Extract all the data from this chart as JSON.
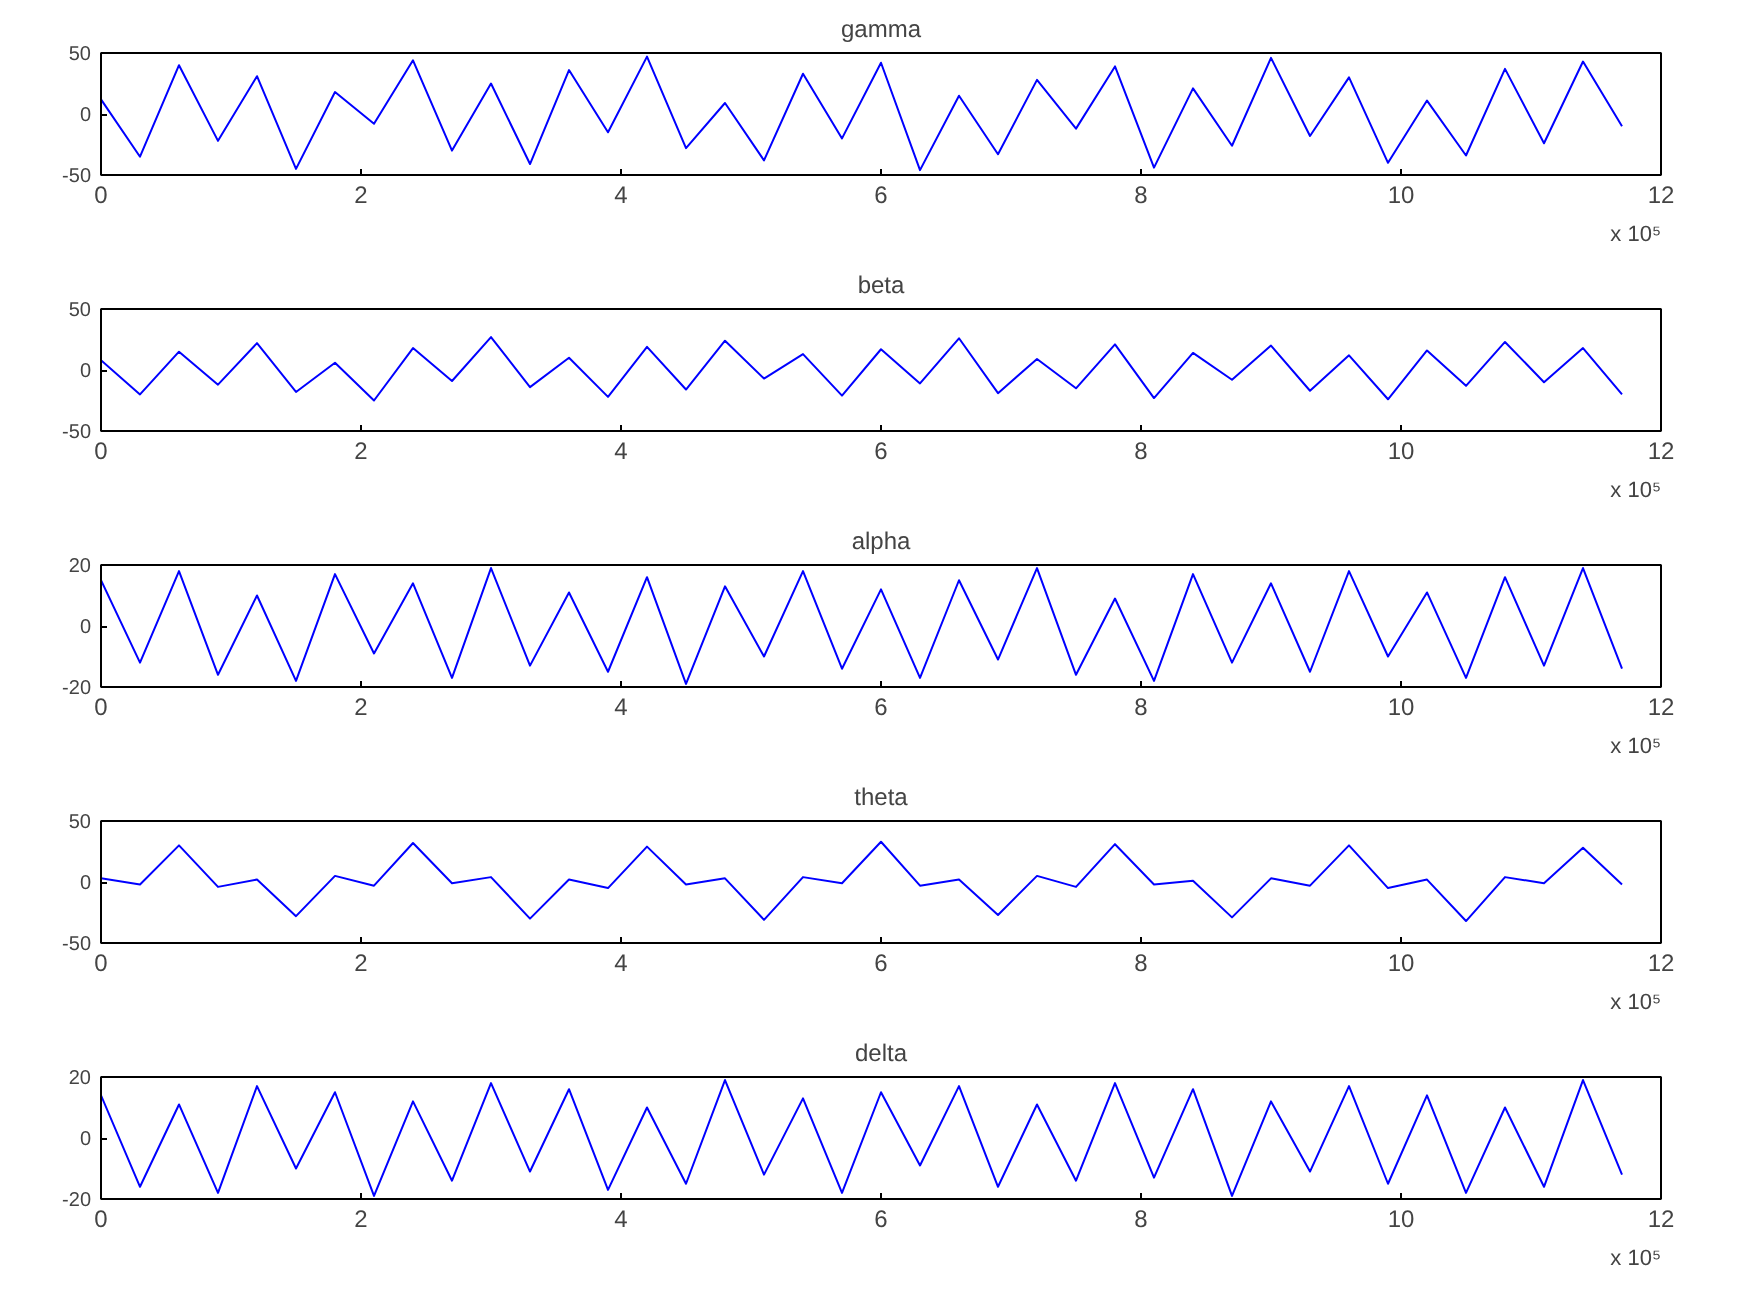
{
  "chart_data": [
    {
      "type": "line",
      "title": "gamma",
      "annotations": [
        "x 10⁵"
      ],
      "color": "#0000ff",
      "grid": false,
      "marker": "none",
      "line_style": "solid",
      "x": [
        0,
        0.3,
        0.6,
        0.9,
        1.2,
        1.5,
        1.8,
        2.1,
        2.4,
        2.7,
        3.0,
        3.3,
        3.6,
        3.9,
        4.2,
        4.5,
        4.8,
        5.1,
        5.4,
        5.7,
        6.0,
        6.3,
        6.6,
        6.9,
        7.2,
        7.5,
        7.8,
        8.1,
        8.4,
        8.7,
        9.0,
        9.3,
        9.6,
        9.9,
        10.2,
        10.5,
        10.8,
        11.1,
        11.4,
        11.7
      ],
      "values": [
        12,
        -35,
        40,
        -22,
        31,
        -45,
        18,
        -8,
        44,
        -30,
        25,
        -41,
        36,
        -15,
        47,
        -28,
        9,
        -38,
        33,
        -20,
        42,
        -46,
        15,
        -33,
        28,
        -12,
        39,
        -44,
        21,
        -26,
        46,
        -18,
        30,
        -40,
        11,
        -34,
        37,
        -24,
        43,
        -10
      ],
      "xlim": [
        0,
        12
      ],
      "xticks": [
        0,
        2,
        4,
        6,
        8,
        10,
        12
      ],
      "ylim": [
        -50,
        50
      ],
      "yticks": [
        -50,
        0,
        50
      ]
    },
    {
      "type": "line",
      "title": "beta",
      "annotations": [
        "x 10⁵"
      ],
      "color": "#0000ff",
      "grid": false,
      "marker": "none",
      "line_style": "solid",
      "x": [
        0,
        0.3,
        0.6,
        0.9,
        1.2,
        1.5,
        1.8,
        2.1,
        2.4,
        2.7,
        3.0,
        3.3,
        3.6,
        3.9,
        4.2,
        4.5,
        4.8,
        5.1,
        5.4,
        5.7,
        6.0,
        6.3,
        6.6,
        6.9,
        7.2,
        7.5,
        7.8,
        8.1,
        8.4,
        8.7,
        9.0,
        9.3,
        9.6,
        9.9,
        10.2,
        10.5,
        10.8,
        11.1,
        11.4,
        11.7
      ],
      "values": [
        8,
        -20,
        15,
        -12,
        22,
        -18,
        6,
        -25,
        18,
        -9,
        27,
        -14,
        10,
        -22,
        19,
        -16,
        24,
        -7,
        13,
        -21,
        17,
        -11,
        26,
        -19,
        9,
        -15,
        21,
        -23,
        14,
        -8,
        20,
        -17,
        12,
        -24,
        16,
        -13,
        23,
        -10,
        18,
        -20
      ],
      "xlim": [
        0,
        12
      ],
      "xticks": [
        0,
        2,
        4,
        6,
        8,
        10,
        12
      ],
      "ylim": [
        -50,
        50
      ],
      "yticks": [
        -50,
        0,
        50
      ]
    },
    {
      "type": "line",
      "title": "alpha",
      "annotations": [
        "x 10⁵"
      ],
      "color": "#0000ff",
      "grid": false,
      "marker": "none",
      "line_style": "solid",
      "x": [
        0,
        0.3,
        0.6,
        0.9,
        1.2,
        1.5,
        1.8,
        2.1,
        2.4,
        2.7,
        3.0,
        3.3,
        3.6,
        3.9,
        4.2,
        4.5,
        4.8,
        5.1,
        5.4,
        5.7,
        6.0,
        6.3,
        6.6,
        6.9,
        7.2,
        7.5,
        7.8,
        8.1,
        8.4,
        8.7,
        9.0,
        9.3,
        9.6,
        9.9,
        10.2,
        10.5,
        10.8,
        11.1,
        11.4,
        11.7
      ],
      "values": [
        15,
        -12,
        18,
        -16,
        10,
        -18,
        17,
        -9,
        14,
        -17,
        19,
        -13,
        11,
        -15,
        16,
        -19,
        13,
        -10,
        18,
        -14,
        12,
        -17,
        15,
        -11,
        19,
        -16,
        9,
        -18,
        17,
        -12,
        14,
        -15,
        18,
        -10,
        11,
        -17,
        16,
        -13,
        19,
        -14
      ],
      "xlim": [
        0,
        12
      ],
      "xticks": [
        0,
        2,
        4,
        6,
        8,
        10,
        12
      ],
      "ylim": [
        -20,
        20
      ],
      "yticks": [
        -20,
        0,
        20
      ]
    },
    {
      "type": "line",
      "title": "theta",
      "annotations": [
        "x 10⁵"
      ],
      "color": "#0000ff",
      "grid": false,
      "marker": "none",
      "line_style": "solid",
      "x": [
        0,
        0.3,
        0.6,
        0.9,
        1.2,
        1.5,
        1.8,
        2.1,
        2.4,
        2.7,
        3.0,
        3.3,
        3.6,
        3.9,
        4.2,
        4.5,
        4.8,
        5.1,
        5.4,
        5.7,
        6.0,
        6.3,
        6.6,
        6.9,
        7.2,
        7.5,
        7.8,
        8.1,
        8.4,
        8.7,
        9.0,
        9.3,
        9.6,
        9.9,
        10.2,
        10.5,
        10.8,
        11.1,
        11.4,
        11.7
      ],
      "values": [
        3,
        -2,
        30,
        -4,
        2,
        -28,
        5,
        -3,
        32,
        -1,
        4,
        -30,
        2,
        -5,
        29,
        -2,
        3,
        -31,
        4,
        -1,
        33,
        -3,
        2,
        -27,
        5,
        -4,
        31,
        -2,
        1,
        -29,
        3,
        -3,
        30,
        -5,
        2,
        -32,
        4,
        -1,
        28,
        -2
      ],
      "xlim": [
        0,
        12
      ],
      "xticks": [
        0,
        2,
        4,
        6,
        8,
        10,
        12
      ],
      "ylim": [
        -50,
        50
      ],
      "yticks": [
        -50,
        0,
        50
      ]
    },
    {
      "type": "line",
      "title": "delta",
      "annotations": [
        "x 10⁵"
      ],
      "color": "#0000ff",
      "grid": false,
      "marker": "none",
      "line_style": "solid",
      "x": [
        0,
        0.3,
        0.6,
        0.9,
        1.2,
        1.5,
        1.8,
        2.1,
        2.4,
        2.7,
        3.0,
        3.3,
        3.6,
        3.9,
        4.2,
        4.5,
        4.8,
        5.1,
        5.4,
        5.7,
        6.0,
        6.3,
        6.6,
        6.9,
        7.2,
        7.5,
        7.8,
        8.1,
        8.4,
        8.7,
        9.0,
        9.3,
        9.6,
        9.9,
        10.2,
        10.5,
        10.8,
        11.1,
        11.4,
        11.7
      ],
      "values": [
        14,
        -16,
        11,
        -18,
        17,
        -10,
        15,
        -19,
        12,
        -14,
        18,
        -11,
        16,
        -17,
        10,
        -15,
        19,
        -12,
        13,
        -18,
        15,
        -9,
        17,
        -16,
        11,
        -14,
        18,
        -13,
        16,
        -19,
        12,
        -11,
        17,
        -15,
        14,
        -18,
        10,
        -16,
        19,
        -12
      ],
      "xlim": [
        0,
        12
      ],
      "xticks": [
        0,
        2,
        4,
        6,
        8,
        10,
        12
      ],
      "ylim": [
        -20,
        20
      ],
      "yticks": [
        -20,
        0,
        20
      ]
    }
  ]
}
